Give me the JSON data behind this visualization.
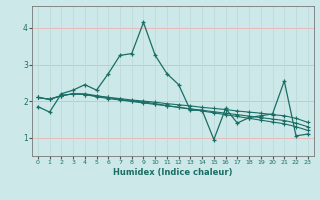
{
  "xlabel": "Humidex (Indice chaleur)",
  "xlim": [
    -0.5,
    23.5
  ],
  "ylim": [
    0.5,
    4.6
  ],
  "xticks": [
    0,
    1,
    2,
    3,
    4,
    5,
    6,
    7,
    8,
    9,
    10,
    11,
    12,
    13,
    14,
    15,
    16,
    17,
    18,
    19,
    20,
    21,
    22,
    23
  ],
  "yticks": [
    1,
    2,
    3,
    4
  ],
  "bg_color": "#cce8e8",
  "grid_color_h": "#f0b0b0",
  "grid_color_v": "#c0d8d8",
  "line_color": "#1a6e65",
  "line1": [
    1.85,
    1.7,
    2.2,
    2.3,
    2.45,
    2.3,
    2.75,
    3.25,
    3.3,
    4.15,
    3.25,
    2.75,
    2.45,
    1.75,
    1.75,
    0.95,
    1.8,
    1.4,
    1.55,
    1.6,
    1.65,
    2.55,
    1.05,
    1.1
  ],
  "line2": [
    2.1,
    2.05,
    2.15,
    2.2,
    2.2,
    2.15,
    2.1,
    2.05,
    2.0,
    1.98,
    1.93,
    1.88,
    1.83,
    1.78,
    1.73,
    1.68,
    1.63,
    1.58,
    1.53,
    1.48,
    1.43,
    1.38,
    1.3,
    1.2
  ],
  "line3": [
    2.1,
    2.05,
    2.15,
    2.2,
    2.18,
    2.12,
    2.07,
    2.03,
    1.99,
    1.95,
    1.91,
    1.87,
    1.83,
    1.79,
    1.75,
    1.71,
    1.67,
    1.63,
    1.59,
    1.55,
    1.51,
    1.47,
    1.4,
    1.3
  ],
  "line4": [
    2.1,
    2.05,
    2.15,
    2.2,
    2.18,
    2.14,
    2.1,
    2.07,
    2.03,
    2.0,
    1.97,
    1.93,
    1.9,
    1.87,
    1.83,
    1.8,
    1.77,
    1.73,
    1.7,
    1.67,
    1.63,
    1.6,
    1.53,
    1.42
  ]
}
